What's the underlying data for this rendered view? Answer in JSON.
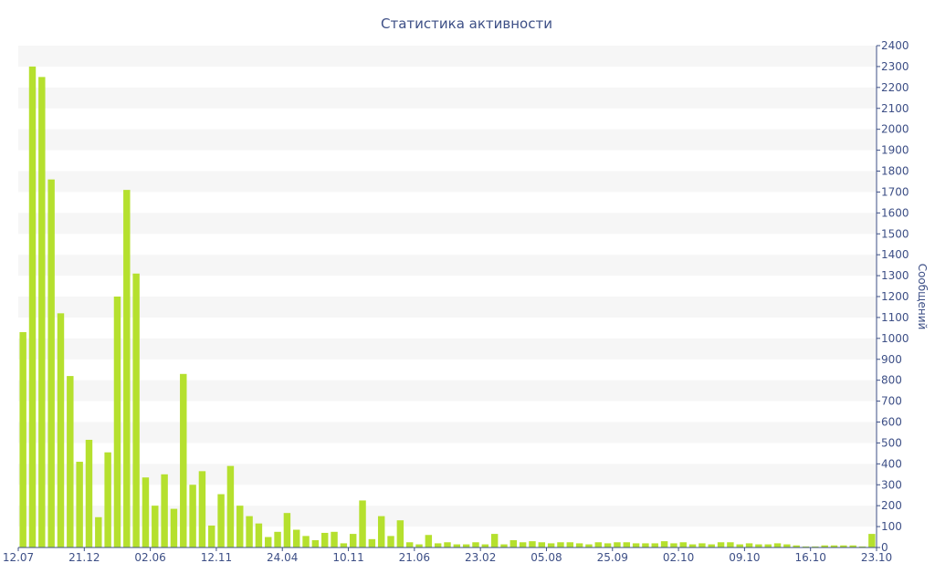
{
  "chart_data": {
    "type": "bar",
    "title": "Статистика активности",
    "xlabel": "",
    "ylabel": "Сообщений",
    "ylim": [
      0,
      2400
    ],
    "y_ticks": [
      0,
      100,
      200,
      300,
      400,
      500,
      600,
      700,
      800,
      900,
      1000,
      1100,
      1200,
      1300,
      1400,
      1500,
      1600,
      1700,
      1800,
      1900,
      2000,
      2100,
      2200,
      2300,
      2400
    ],
    "y_axis_position": "right",
    "grid": "horizontal-bands",
    "bar_color": "#b5e02e",
    "band_color": "#f6f6f6",
    "text_color": "#3d4f86",
    "x_tick_labels": [
      "12.07",
      "21.12",
      "02.06",
      "12.11",
      "24.04",
      "10.11",
      "21.06",
      "23.02",
      "05.08",
      "25.09",
      "02.10",
      "09.10",
      "16.10",
      "23.10"
    ],
    "values": [
      1030,
      2300,
      2250,
      1760,
      1120,
      820,
      410,
      515,
      145,
      455,
      1200,
      1710,
      1310,
      335,
      200,
      350,
      185,
      830,
      300,
      365,
      105,
      255,
      390,
      200,
      150,
      115,
      50,
      75,
      165,
      85,
      55,
      35,
      70,
      75,
      20,
      65,
      225,
      40,
      150,
      55,
      130,
      25,
      15,
      60,
      20,
      25,
      15,
      15,
      25,
      15,
      65,
      15,
      35,
      25,
      30,
      25,
      20,
      25,
      25,
      20,
      15,
      25,
      20,
      25,
      25,
      20,
      20,
      20,
      30,
      20,
      25,
      15,
      20,
      15,
      25,
      25,
      15,
      20,
      15,
      15,
      20,
      15,
      10,
      5,
      5,
      10,
      10,
      10,
      10,
      5,
      65
    ]
  }
}
